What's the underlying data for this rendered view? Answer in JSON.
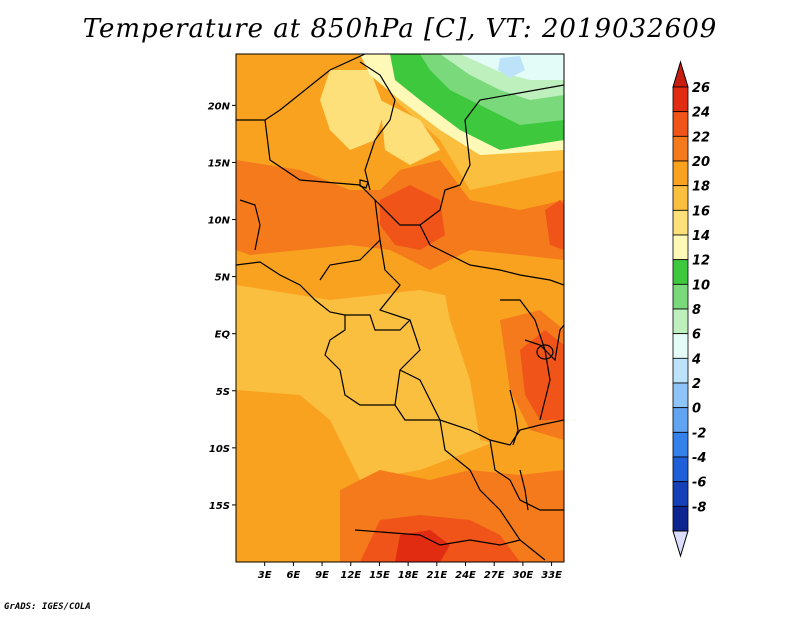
{
  "title": "Temperature at 850hPa [C], VT: 2019032609",
  "credit": "GrADS: IGES/COLA",
  "map": {
    "lat_labels": [
      "20N",
      "15N",
      "10N",
      "5N",
      "EQ",
      "5S",
      "10S",
      "15S"
    ],
    "lat_values": [
      20,
      15,
      10,
      5,
      0,
      -5,
      -10,
      -15
    ],
    "lon_labels": [
      "3E",
      "6E",
      "9E",
      "12E",
      "15E",
      "18E",
      "21E",
      "24E",
      "27E",
      "30E",
      "33E"
    ],
    "lon_values": [
      3,
      6,
      9,
      12,
      15,
      18,
      21,
      24,
      27,
      30,
      33
    ],
    "lat_range": [
      -20,
      24.5
    ],
    "lon_range": [
      0,
      34.3
    ],
    "field": "temperature_850hPa",
    "units": "C",
    "valid_time": "2019032609"
  },
  "colorbar": {
    "labels": [
      "26",
      "24",
      "22",
      "20",
      "18",
      "16",
      "14",
      "12",
      "10",
      "8",
      "6",
      "4",
      "2",
      "0",
      "-2",
      "-4",
      "-6",
      "-8"
    ],
    "colors": [
      "#e22c12",
      "#f05418",
      "#f57a1c",
      "#f9a21f",
      "#fbbf3f",
      "#fde07a",
      "#fff9b8",
      "#3ec83e",
      "#7ad97a",
      "#bdf0bd",
      "#e4fcf7",
      "#bde3fb",
      "#8ec4f7",
      "#60a4f2",
      "#3581eb",
      "#1f5fd9",
      "#1640b8",
      "#0e2490",
      "#0a0a6a"
    ],
    "top_arrow_color": "#c81e10",
    "bottom_arrow_color": "#dcdcff"
  }
}
